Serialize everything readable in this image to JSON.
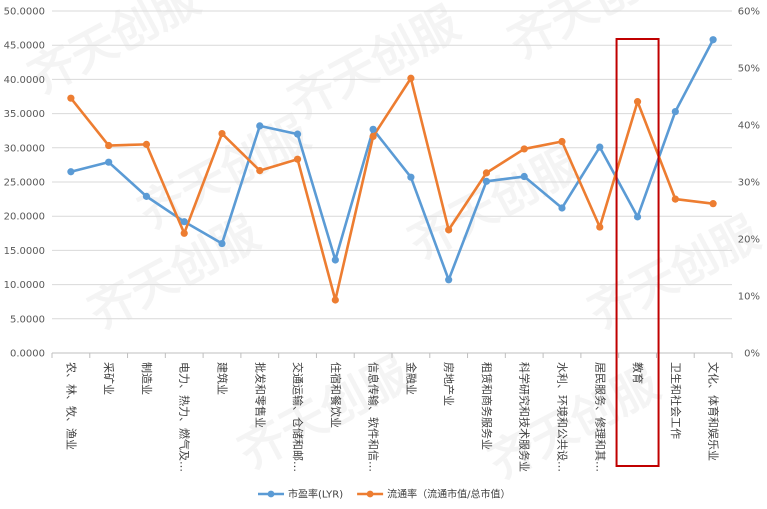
{
  "chart_data": {
    "type": "line",
    "categories": [
      "农、林、牧、渔业",
      "采矿业",
      "制造业",
      "电力、热力、燃气及…",
      "建筑业",
      "批发和零售业",
      "交通运输、仓储和邮…",
      "住宿和餐饮业",
      "信息传输、软件和信…",
      "金融业",
      "房地产业",
      "租赁和商务服务业",
      "科学研究和技术服务业",
      "水利、环境和公共设…",
      "居民服务、修理和其…",
      "教育",
      "卫生和社会工作",
      "文化、体育和娱乐业"
    ],
    "series": [
      {
        "name": "市盈率(LYR)",
        "axis": "left",
        "color": "#5b9bd5",
        "values": [
          26.5,
          27.9,
          22.9,
          19.2,
          16.0,
          33.2,
          32.0,
          13.6,
          32.7,
          25.7,
          10.7,
          25.1,
          25.8,
          21.2,
          30.1,
          19.9,
          35.3,
          45.8
        ]
      },
      {
        "name": "流通率（流通市值/总市值）",
        "axis": "right",
        "color": "#ed7d31",
        "values": [
          0.447,
          0.364,
          0.366,
          0.21,
          0.385,
          0.32,
          0.34,
          0.093,
          0.38,
          0.482,
          0.216,
          0.316,
          0.358,
          0.371,
          0.221,
          0.441,
          0.27,
          0.262
        ]
      }
    ],
    "y_left": {
      "min": 0,
      "max": 50,
      "step": 5,
      "ticks": [
        "0.0000",
        "5.0000",
        "10.0000",
        "15.0000",
        "20.0000",
        "25.0000",
        "30.0000",
        "35.0000",
        "40.0000",
        "45.0000",
        "50.0000"
      ]
    },
    "y_right": {
      "min": 0,
      "max": 0.6,
      "step": 0.1,
      "ticks": [
        "0%",
        "10%",
        "20%",
        "30%",
        "40%",
        "50%",
        "60%"
      ]
    },
    "highlight_category": "教育",
    "highlight_color": "#c00000",
    "grid": "horizontal",
    "legend_position": "bottom",
    "title": "",
    "xlabel": "",
    "ylabel": ""
  },
  "watermark_text": "齐天创服"
}
